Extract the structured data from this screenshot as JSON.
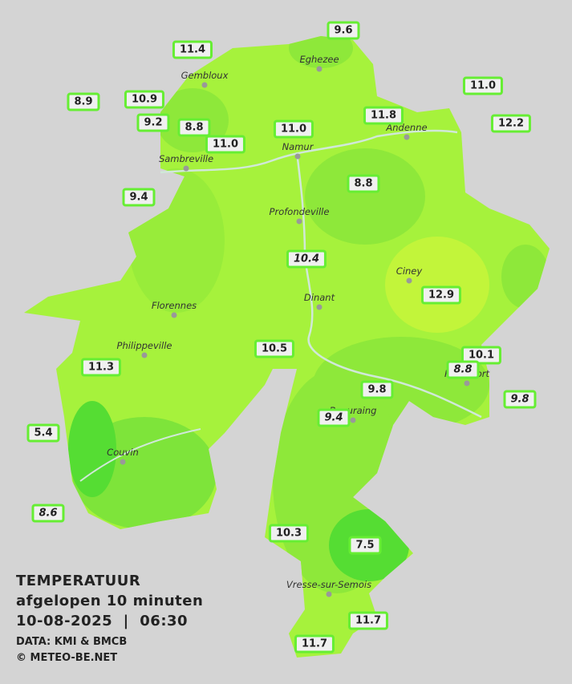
{
  "legend": {
    "title": "TEMPERATUUR",
    "subtitle": "afgelopen 10 minuten",
    "datetime": "10-08-2025  |  06:30",
    "source": "DATA: KMI & BMCB",
    "credit": "© METEO-BE.NET"
  },
  "places": [
    "Eghezee",
    "Gembloux",
    "Andenne",
    "Namur",
    "Sambreville",
    "Profondeville",
    "Ciney",
    "Dinant",
    "Florennes",
    "Philippeville",
    "Rochefort",
    "Beauraing",
    "Couvin",
    "Vresse-sur-Semois"
  ],
  "stations": [
    {
      "label": "11.4"
    },
    {
      "label": "9.6"
    },
    {
      "label": "10.9"
    },
    {
      "label": "8.9"
    },
    {
      "label": "11.0"
    },
    {
      "label": "9.2"
    },
    {
      "label": "8.8"
    },
    {
      "label": "11.8"
    },
    {
      "label": "12.2"
    },
    {
      "label": "11.0"
    },
    {
      "label": "11.0"
    },
    {
      "label": "8.8"
    },
    {
      "label": "9.4"
    },
    {
      "label": "10.4",
      "italic": true
    },
    {
      "label": "12.9"
    },
    {
      "label": "10.5"
    },
    {
      "label": "10.1"
    },
    {
      "label": "8.8",
      "italic": true
    },
    {
      "label": "11.3"
    },
    {
      "label": "9.8"
    },
    {
      "label": "9.8",
      "italic": true
    },
    {
      "label": "9.4",
      "italic": true
    },
    {
      "label": "5.4"
    },
    {
      "label": "8.6",
      "italic": true
    },
    {
      "label": "10.3"
    },
    {
      "label": "7.5"
    },
    {
      "label": "11.7"
    },
    {
      "label": "11.7"
    }
  ]
}
